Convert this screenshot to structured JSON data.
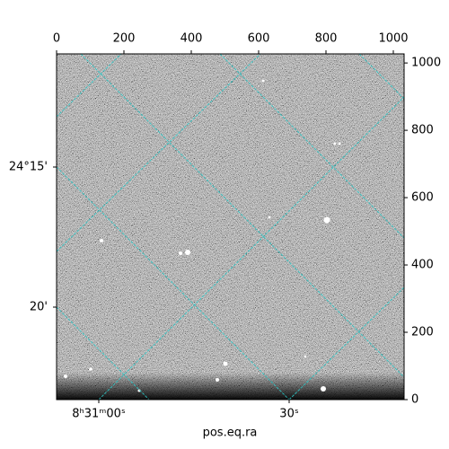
{
  "chart_data": {
    "type": "image",
    "xlabel": "pos.eq.ra",
    "xlim": [
      0,
      1032
    ],
    "xticks": [
      0,
      200,
      400,
      600,
      800,
      1000
    ],
    "ylim": [
      0,
      1027
    ],
    "yticks": [
      0,
      200,
      400,
      600,
      800,
      1000
    ],
    "ra_ticks": [
      "8ʰ31ᵐ00ˢ",
      "30ˢ"
    ],
    "dec_ticks": [
      "24°15'",
      "20'"
    ]
  }
}
